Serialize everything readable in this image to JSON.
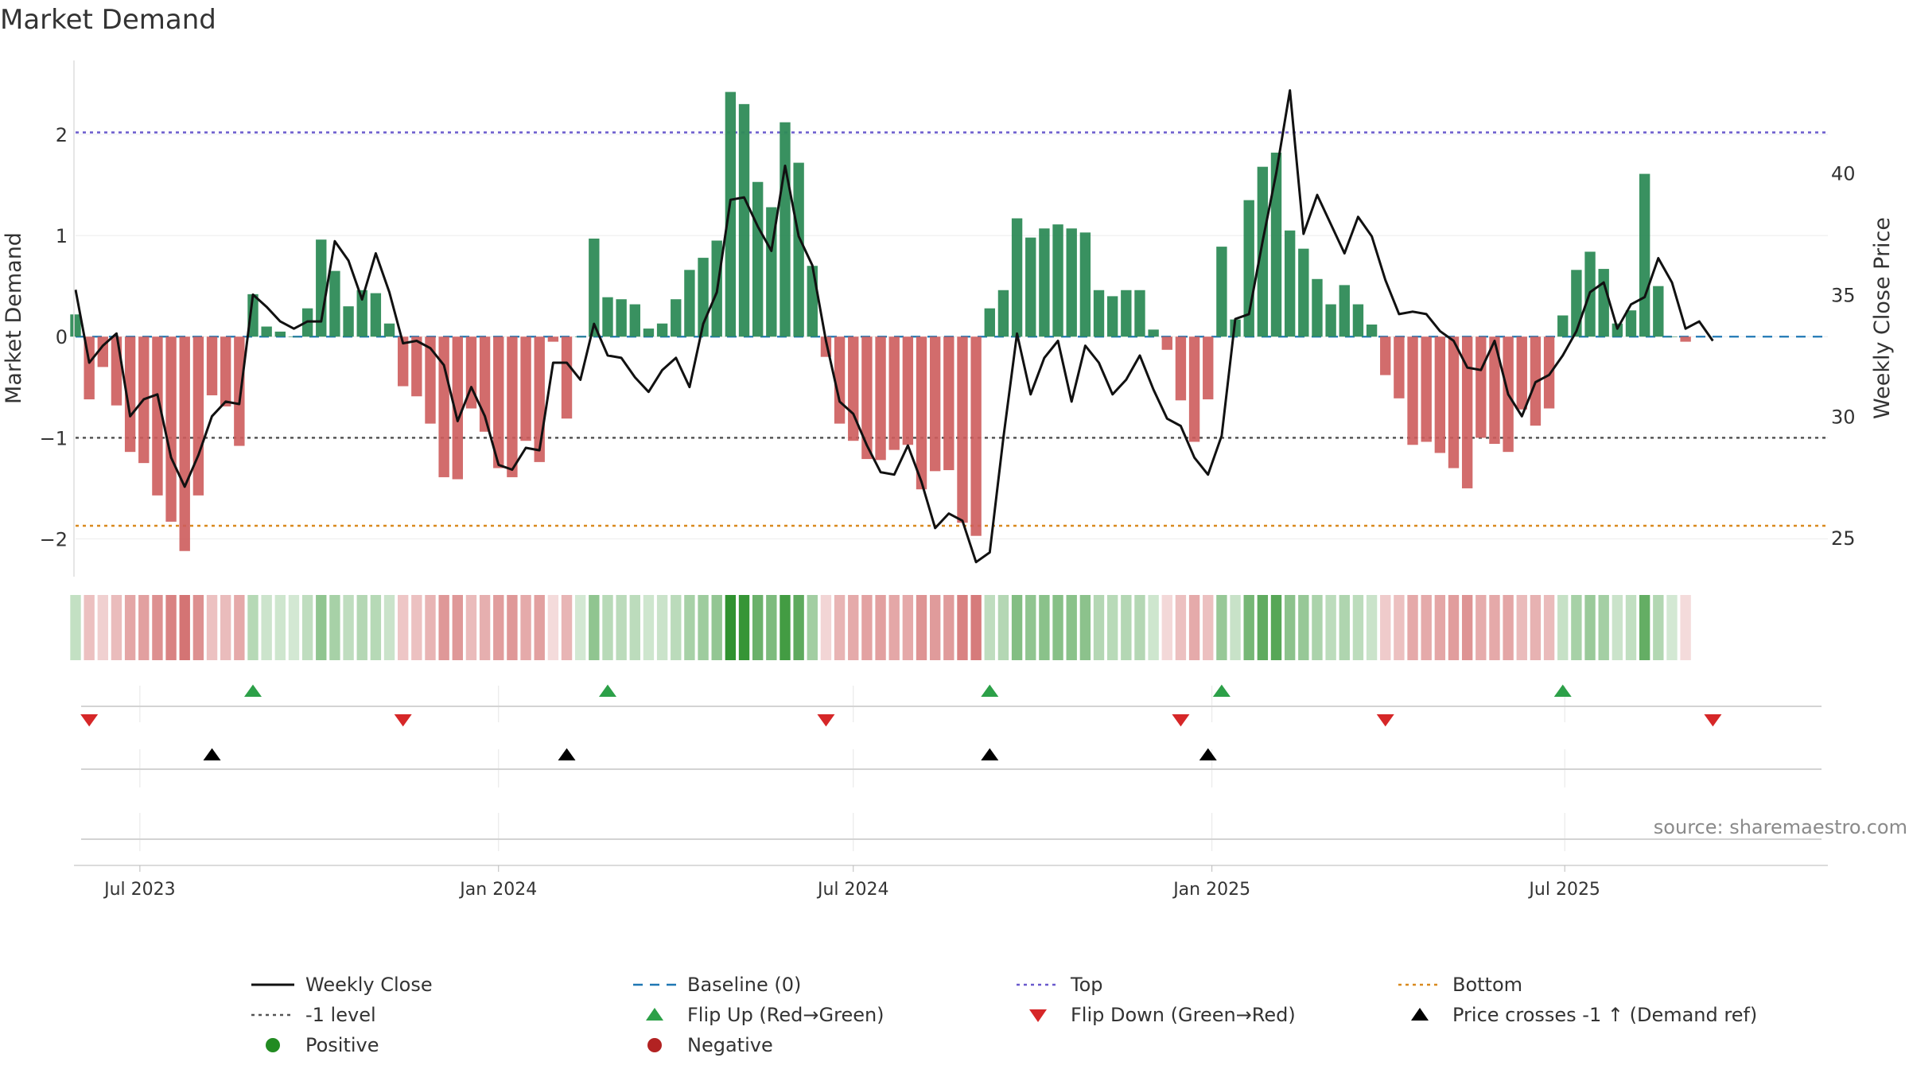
{
  "chart_data": {
    "type": "bar",
    "title": "Market Demand",
    "ylabel": "Market Demand",
    "y2label": "Weekly Close Price",
    "ylim": [
      -2.35,
      2.7
    ],
    "y2lim": [
      23.5,
      44.5
    ],
    "yticks": [
      -2,
      -1,
      0,
      1,
      2
    ],
    "y2ticks": [
      25,
      30,
      35,
      40
    ],
    "x_range": [
      "2023-05-29",
      "2025-11-13"
    ],
    "xticks": [
      {
        "date": "2023-07-01",
        "label": "Jul 2023"
      },
      {
        "date": "2024-01-01",
        "label": "Jan 2024"
      },
      {
        "date": "2024-07-01",
        "label": "Jul 2024"
      },
      {
        "date": "2025-01-01",
        "label": "Jan 2025"
      },
      {
        "date": "2025-07-01",
        "label": "Jul 2025"
      }
    ],
    "start_date": "2023-05-29",
    "week_days": 7,
    "reference_lines": {
      "top": 2.02,
      "bottom": -1.87,
      "minus_one": -1.0,
      "baseline": 0
    },
    "series": [
      {
        "name": "Market Demand",
        "values": [
          0.22,
          -0.62,
          -0.3,
          -0.68,
          -1.14,
          -1.25,
          -1.57,
          -1.83,
          -2.12,
          -1.57,
          -0.58,
          -0.69,
          -1.08,
          0.42,
          0.1,
          0.05,
          0.0,
          0.28,
          0.96,
          0.65,
          0.3,
          0.46,
          0.43,
          0.13,
          -0.49,
          -0.59,
          -0.86,
          -1.39,
          -1.41,
          -0.71,
          -0.94,
          -1.3,
          -1.39,
          -1.03,
          -1.24,
          -0.05,
          -0.81,
          0.0,
          0.97,
          0.39,
          0.37,
          0.32,
          0.08,
          0.13,
          0.37,
          0.66,
          0.78,
          0.95,
          2.42,
          2.3,
          1.53,
          1.28,
          2.12,
          1.72,
          0.7,
          -0.2,
          -0.86,
          -1.03,
          -1.21,
          -1.22,
          -1.12,
          -1.07,
          -1.51,
          -1.33,
          -1.32,
          -1.84,
          -1.97,
          0.28,
          0.46,
          1.17,
          0.98,
          1.07,
          1.11,
          1.07,
          1.03,
          0.46,
          0.4,
          0.46,
          0.46,
          0.07,
          -0.13,
          -0.63,
          -1.04,
          -0.62,
          0.89,
          0.17,
          1.35,
          1.68,
          1.82,
          1.05,
          0.87,
          0.57,
          0.32,
          0.51,
          0.32,
          0.12,
          -0.38,
          -0.61,
          -1.07,
          -1.04,
          -1.15,
          -1.3,
          -1.5,
          -1.0,
          -1.06,
          -1.14,
          -0.72,
          -0.88,
          -0.71,
          0.21,
          0.66,
          0.84,
          0.67,
          0.13,
          0.26,
          1.61,
          0.5,
          0.0,
          -0.05
        ]
      },
      {
        "name": "Weekly Close",
        "values": [
          35.2,
          32.2,
          32.9,
          33.4,
          30.0,
          30.7,
          30.9,
          28.3,
          27.1,
          28.4,
          30.0,
          30.6,
          30.5,
          35.0,
          34.5,
          33.9,
          33.6,
          33.9,
          33.9,
          37.2,
          36.4,
          34.8,
          36.7,
          35.1,
          33.0,
          33.1,
          32.8,
          32.1,
          29.8,
          31.2,
          30.0,
          28.0,
          27.8,
          28.7,
          28.6,
          32.2,
          32.2,
          31.5,
          33.8,
          32.5,
          32.4,
          31.6,
          31.0,
          31.9,
          32.4,
          31.2,
          33.8,
          35.1,
          38.9,
          39.0,
          37.8,
          36.8,
          40.3,
          37.4,
          36.2,
          33.1,
          30.6,
          30.1,
          28.8,
          27.7,
          27.6,
          28.8,
          27.3,
          25.4,
          26.0,
          25.7,
          24.0,
          24.4,
          29.1,
          33.4,
          30.9,
          32.4,
          33.1,
          30.6,
          32.9,
          32.2,
          30.9,
          31.5,
          32.5,
          31.1,
          29.9,
          29.6,
          28.3,
          27.6,
          29.2,
          34.0,
          34.2,
          37.2,
          40.0,
          43.4,
          37.5,
          39.1,
          37.9,
          36.7,
          38.2,
          37.4,
          35.6,
          34.2,
          34.3,
          34.2,
          33.5,
          33.1,
          32.0,
          31.9,
          33.1,
          30.9,
          30.0,
          31.4,
          31.7,
          32.5,
          33.5,
          35.1,
          35.5,
          33.6,
          34.6,
          34.9,
          36.5,
          35.5,
          33.6,
          33.9,
          33.1
        ]
      }
    ],
    "colors": {
      "positive_bar": "#2e8b57",
      "negative_bar": "#cd5c5c",
      "weekly_close": "#111111",
      "baseline": "#1f77b4",
      "top": "#6a5acd",
      "minus_one": "#555555",
      "bottom": "#d98a1f",
      "flip_up": "#2ca048",
      "flip_down": "#d62728",
      "crosses": "#000000",
      "positive_dot": "#228b22",
      "negative_dot": "#b22222"
    },
    "flip_up_weeks": [
      13,
      39,
      67,
      84,
      109
    ],
    "flip_down_weeks": [
      1,
      24,
      55,
      81,
      96,
      120
    ],
    "price_crosses_weeks": [
      10,
      36,
      67,
      83
    ],
    "legend": [
      {
        "label": "Weekly Close",
        "kind": "line",
        "color": "#111111"
      },
      {
        "label": "Baseline (0)",
        "kind": "dash",
        "color": "#1f77b4"
      },
      {
        "label": "Top",
        "kind": "dot",
        "color": "#6a5acd"
      },
      {
        "label": "Bottom",
        "kind": "dot",
        "color": "#d98a1f"
      },
      {
        "label": "-1 level",
        "kind": "dot",
        "color": "#555555"
      },
      {
        "label": "Flip Up (Red→Green)",
        "kind": "tri-up",
        "color": "#2ca048"
      },
      {
        "label": "Flip Down (Green→Red)",
        "kind": "tri-down",
        "color": "#d62728"
      },
      {
        "label": "Price crosses -1 ↑ (Demand ref)",
        "kind": "tri-up",
        "color": "#000000"
      },
      {
        "label": "Positive",
        "kind": "circle",
        "color": "#228b22"
      },
      {
        "label": "Negative",
        "kind": "circle",
        "color": "#b22222"
      }
    ],
    "legend_position": "bottom",
    "source_note": "source: sharemaestro.com"
  }
}
